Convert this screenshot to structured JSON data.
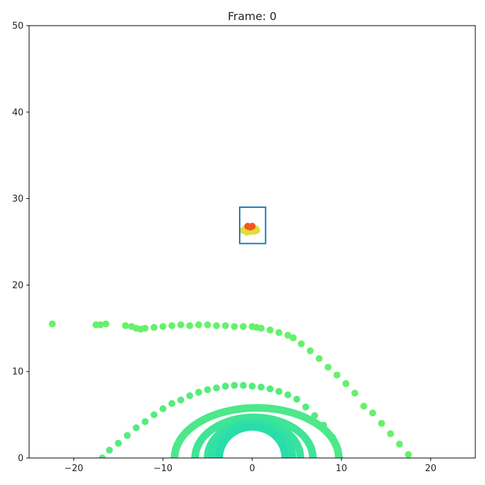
{
  "chart_data": {
    "type": "scatter",
    "title": "Frame: 0",
    "xlabel": "",
    "ylabel": "",
    "xlim": [
      -25,
      25
    ],
    "ylim": [
      0,
      50
    ],
    "xticks": [
      -20,
      -10,
      0,
      10,
      20
    ],
    "yticks": [
      0,
      10,
      20,
      30,
      40,
      50
    ],
    "grid": false,
    "colors": {
      "outer_arc": "#66f16a",
      "mid_arc": "#55ec7c",
      "ring_1": "#4ce88a",
      "ring_2": "#3fe596",
      "ring_3": "#37e39d",
      "ring_4": "#30e0a5",
      "ring_5": "#28dda9",
      "object_body": "#e2dc3c",
      "object_top": "#f2581e",
      "box": "#1f77b4"
    },
    "series": [
      {
        "color_key": "outer_arc",
        "points": [
          [
            -22.4,
            15.5
          ],
          [
            -17.5,
            15.4
          ],
          [
            -17.0,
            15.4
          ],
          [
            -16.4,
            15.5
          ],
          [
            -14.2,
            15.3
          ],
          [
            -13.5,
            15.2
          ],
          [
            -13.0,
            15.0
          ],
          [
            -12.5,
            14.9
          ],
          [
            -12.0,
            15.0
          ],
          [
            -11.0,
            15.1
          ],
          [
            -10.0,
            15.2
          ],
          [
            -9.0,
            15.3
          ],
          [
            -8.0,
            15.4
          ],
          [
            -7.0,
            15.3
          ],
          [
            -6.0,
            15.4
          ],
          [
            -5.0,
            15.4
          ],
          [
            -4.0,
            15.3
          ],
          [
            -3.0,
            15.3
          ],
          [
            -2.0,
            15.2
          ],
          [
            -1.0,
            15.2
          ],
          [
            0.0,
            15.2
          ],
          [
            0.5,
            15.1
          ],
          [
            1.0,
            15.0
          ],
          [
            2.0,
            14.8
          ],
          [
            3.0,
            14.5
          ],
          [
            4.0,
            14.2
          ],
          [
            4.6,
            13.9
          ],
          [
            5.5,
            13.2
          ],
          [
            6.5,
            12.4
          ],
          [
            7.5,
            11.5
          ],
          [
            8.5,
            10.5
          ],
          [
            9.5,
            9.6
          ],
          [
            10.5,
            8.6
          ],
          [
            11.5,
            7.5
          ],
          [
            12.5,
            6.0
          ],
          [
            13.5,
            5.2
          ],
          [
            14.5,
            4.0
          ],
          [
            15.5,
            2.8
          ],
          [
            16.5,
            1.6
          ],
          [
            17.5,
            0.4
          ]
        ]
      },
      {
        "color_key": "mid_arc",
        "points": [
          [
            -16.8,
            0.0
          ],
          [
            -16.0,
            0.9
          ],
          [
            -15.0,
            1.7
          ],
          [
            -14.0,
            2.6
          ],
          [
            -13.0,
            3.5
          ],
          [
            -12.0,
            4.2
          ],
          [
            -11.0,
            5.0
          ],
          [
            -10.0,
            5.7
          ],
          [
            -9.0,
            6.3
          ],
          [
            -8.0,
            6.7
          ],
          [
            -7.0,
            7.2
          ],
          [
            -6.0,
            7.6
          ],
          [
            -5.0,
            7.9
          ],
          [
            -4.0,
            8.1
          ],
          [
            -3.0,
            8.3
          ],
          [
            -2.0,
            8.4
          ],
          [
            -1.0,
            8.4
          ],
          [
            0.0,
            8.3
          ],
          [
            1.0,
            8.2
          ],
          [
            2.0,
            8.0
          ],
          [
            3.0,
            7.7
          ],
          [
            4.0,
            7.3
          ],
          [
            5.0,
            6.8
          ],
          [
            6.0,
            5.9
          ],
          [
            7.0,
            4.9
          ],
          [
            8.0,
            3.8
          ],
          [
            9.0,
            2.4
          ],
          [
            9.6,
            1.0
          ],
          [
            9.8,
            0.0
          ]
        ]
      },
      {
        "color_key": "ring_1",
        "ring": {
          "cx": 0.5,
          "rx": 9.2,
          "ry": 5.8
        }
      },
      {
        "color_key": "ring_2",
        "ring": {
          "cx": 0.2,
          "rx": 6.6,
          "ry": 4.7
        }
      },
      {
        "color_key": "ring_3",
        "ring": {
          "cx": 0.2,
          "rx": 5.2,
          "ry": 4.2
        }
      },
      {
        "color_key": "ring_4",
        "ring": {
          "cx": 0.0,
          "rx": 4.5,
          "ry": 3.9
        }
      },
      {
        "color_key": "ring_5",
        "ring": {
          "cx": 0.0,
          "rx": 3.7,
          "ry": 3.6
        }
      },
      {
        "color_key": "object_body",
        "points": [
          [
            -1.0,
            26.3
          ],
          [
            -0.6,
            26.1
          ],
          [
            -0.2,
            26.2
          ],
          [
            0.2,
            26.2
          ],
          [
            0.5,
            26.3
          ],
          [
            -0.8,
            26.5
          ],
          [
            -0.2,
            26.5
          ],
          [
            0.4,
            26.5
          ]
        ]
      },
      {
        "color_key": "object_top",
        "points": [
          [
            -0.5,
            26.8
          ],
          [
            0.0,
            26.8
          ],
          [
            -0.2,
            26.7
          ]
        ]
      }
    ],
    "box": {
      "x0": -1.4,
      "x1": 1.5,
      "y0": 24.8,
      "y1": 29.0
    }
  }
}
